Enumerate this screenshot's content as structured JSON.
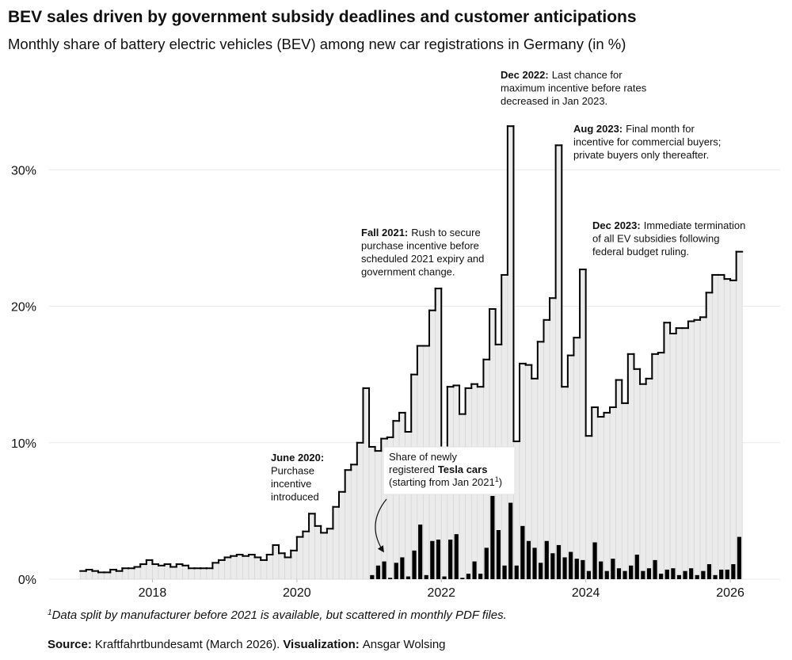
{
  "chart_data": {
    "type": "step-bar",
    "title": "BEV sales driven by government subsidy deadlines and customer anticipations",
    "subtitle": "Monthly share of battery electric vehicles (BEV) among new car registrations in Germany (in %)",
    "x": [
      2017,
      2017.083,
      2017.167,
      2017.25,
      2017.333,
      2017.417,
      2017.5,
      2017.583,
      2017.667,
      2017.75,
      2017.833,
      2017.917,
      2018,
      2018.083,
      2018.167,
      2018.25,
      2018.333,
      2018.417,
      2018.5,
      2018.583,
      2018.667,
      2018.75,
      2018.833,
      2018.917,
      2019,
      2019.083,
      2019.167,
      2019.25,
      2019.333,
      2019.417,
      2019.5,
      2019.583,
      2019.667,
      2019.75,
      2019.833,
      2019.917,
      2020,
      2020.083,
      2020.167,
      2020.25,
      2020.333,
      2020.417,
      2020.5,
      2020.583,
      2020.667,
      2020.75,
      2020.833,
      2020.917,
      2021,
      2021.083,
      2021.167,
      2021.25,
      2021.333,
      2021.417,
      2021.5,
      2021.583,
      2021.667,
      2021.75,
      2021.833,
      2021.917,
      2022,
      2022.083,
      2022.167,
      2022.25,
      2022.333,
      2022.417,
      2022.5,
      2022.583,
      2022.667,
      2022.75,
      2022.833,
      2022.917,
      2023,
      2023.083,
      2023.167,
      2023.25,
      2023.333,
      2023.417,
      2023.5,
      2023.583,
      2023.667,
      2023.75,
      2023.833,
      2023.917,
      2024,
      2024.083,
      2024.167,
      2024.25,
      2024.333,
      2024.417,
      2024.5,
      2024.583,
      2024.667,
      2024.75,
      2024.833,
      2024.917,
      2025,
      2025.083,
      2025.167,
      2025.25,
      2025.333,
      2025.417,
      2025.5,
      2025.583,
      2025.667,
      2025.75,
      2025.833,
      2025.917,
      2026,
      2026.083
    ],
    "series": [
      {
        "color": "#000000",
        "fill": "#ebebeb",
        "values": [
          0.6,
          0.7,
          0.6,
          0.5,
          0.5,
          0.7,
          0.6,
          0.8,
          0.8,
          0.9,
          1.1,
          1.4,
          1.1,
          1.0,
          1.1,
          0.9,
          1.1,
          1.0,
          0.8,
          0.8,
          0.8,
          0.8,
          1.2,
          1.4,
          1.6,
          1.7,
          1.8,
          1.7,
          1.8,
          1.6,
          1.4,
          1.8,
          2.5,
          1.9,
          1.6,
          2.1,
          3.1,
          3.5,
          4.8,
          3.9,
          3.4,
          3.7,
          5.3,
          6.4,
          8.0,
          8.4,
          10.0,
          14.0,
          9.7,
          9.4,
          10.3,
          10.4,
          11.6,
          12.2,
          10.8,
          15.0,
          17.1,
          17.1,
          19.7,
          21.3,
          9.6,
          14.1,
          14.2,
          12.1,
          14.0,
          14.3,
          14.1,
          16.1,
          19.8,
          17.2,
          22.3,
          33.2,
          10.1,
          15.8,
          15.7,
          14.7,
          17.4,
          19.0,
          20.6,
          31.8,
          14.1,
          16.4,
          17.7,
          22.7,
          10.5,
          12.6,
          11.9,
          12.2,
          12.6,
          14.6,
          12.9,
          16.5,
          15.4,
          14.3,
          14.7,
          16.5,
          16.6,
          18.8,
          18.0,
          18.4,
          18.4,
          18.9,
          19.0,
          19.2,
          21.0,
          22.3,
          22.3,
          22.0,
          21.9,
          24.0
        ]
      },
      {
        "color": "#000000",
        "values": [
          null,
          null,
          null,
          null,
          null,
          null,
          null,
          null,
          null,
          null,
          null,
          null,
          null,
          null,
          null,
          null,
          null,
          null,
          null,
          null,
          null,
          null,
          null,
          null,
          null,
          null,
          null,
          null,
          null,
          null,
          null,
          null,
          null,
          null,
          null,
          null,
          null,
          null,
          null,
          null,
          null,
          null,
          null,
          null,
          null,
          null,
          null,
          null,
          0.3,
          1.0,
          1.3,
          0.1,
          1.2,
          1.6,
          0.2,
          2.1,
          4.0,
          0.3,
          2.8,
          2.9,
          0.2,
          2.9,
          3.3,
          0.1,
          0.4,
          1.3,
          0.4,
          2.3,
          6.1,
          3.6,
          1.0,
          5.6,
          1.0,
          3.9,
          2.8,
          2.3,
          1.2,
          2.8,
          1.9,
          2.5,
          1.6,
          2.0,
          1.5,
          1.4,
          0.6,
          2.7,
          1.3,
          0.6,
          1.5,
          0.8,
          0.6,
          1.0,
          1.8,
          0.6,
          0.8,
          1.4,
          0.4,
          0.7,
          0.8,
          0.3,
          0.6,
          0.8,
          0.3,
          0.6,
          1.1,
          0.3,
          0.7,
          0.7,
          1.1,
          3.1
        ]
      }
    ],
    "xlim": [
      2016.57,
      2026.69
    ],
    "xticks": [
      2018,
      2020,
      2022,
      2024,
      2026
    ],
    "ylim": [
      0,
      36
    ],
    "yticks": [
      {
        "value": 0,
        "label": "0%"
      },
      {
        "value": 10,
        "label": "10%"
      },
      {
        "value": 20,
        "label": "20%"
      },
      {
        "value": 30,
        "label": "30%"
      }
    ],
    "grid": true,
    "annotations": [
      {
        "label": "June 2020:",
        "lines": [
          "Purchase",
          "incentive",
          "introduced"
        ]
      },
      {
        "label": "Fall 2021:",
        "lines": [
          "Rush to secure",
          "purchase incentive before",
          "scheduled 2021 expiry and",
          "government change."
        ]
      },
      {
        "label": "Dec 2022:",
        "lines": [
          "Last chance for",
          "maximum incentive before rates",
          "decreased in Jan 2023."
        ]
      },
      {
        "label": "Aug 2023:",
        "lines": [
          "Final month for",
          "incentive for commercial buyers;",
          "private buyers only thereafter."
        ]
      },
      {
        "label": "Dec 2023:",
        "lines": [
          "Immediate termination",
          "of all EV subsidies following",
          "federal budget ruling."
        ]
      }
    ],
    "tesla_note": {
      "lines": [
        "Share of newly",
        "registered",
        "(starting from Jan 2021"
      ],
      "bold": "Tesla cars",
      "mark": "1",
      "close": ")"
    },
    "footnote": {
      "mark": "1",
      "text": "Data split by manufacturer before 2021 is available, but scattered in monthly PDF files."
    },
    "source": {
      "label": "Source:",
      "text": "Kraftfahrtbundesamt (March 2026).",
      "viz_label": "Visualization:",
      "viz_text": "Ansgar Wolsing"
    }
  }
}
